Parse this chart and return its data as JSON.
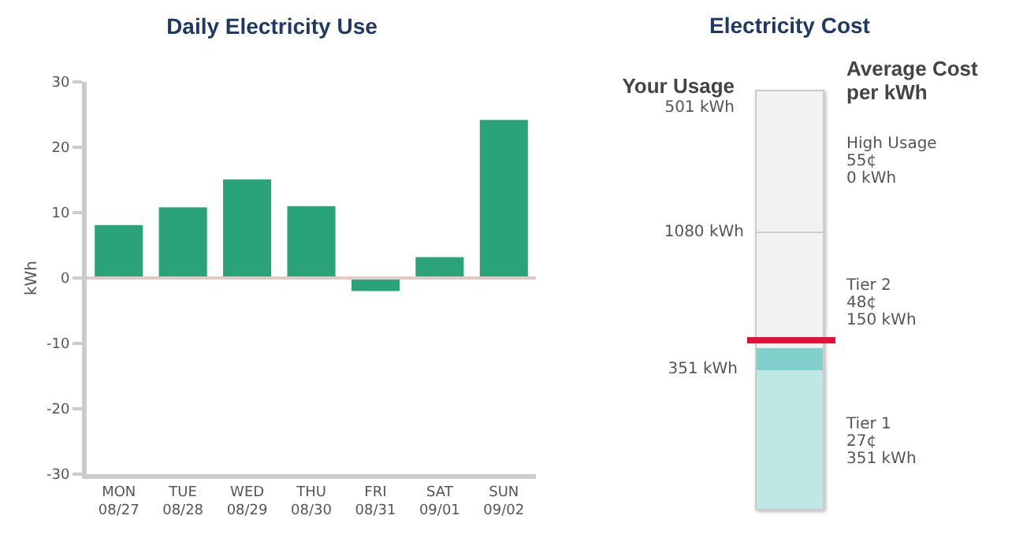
{
  "chart_data": [
    {
      "type": "bar",
      "title": "Daily Electricity Use",
      "ylabel": "kWh",
      "categories": [
        "MON\n08/27",
        "TUE\n08/28",
        "WED\n08/29",
        "THU\n08/30",
        "FRI\n08/31",
        "SAT\n09/01",
        "SUN\n09/02"
      ],
      "values": [
        8.1,
        10.8,
        15.1,
        11.0,
        -2.0,
        3.2,
        24.2
      ],
      "color": "#2aa37a",
      "ylim": [
        -30,
        30
      ],
      "yticks": [
        -30,
        -20,
        -10,
        0,
        10,
        20,
        30
      ],
      "grid": false,
      "ref_lines": [
        {
          "axis": "y",
          "value": 0,
          "color": "#e6c8c8"
        }
      ]
    },
    {
      "type": "other",
      "title": "Electricity Cost",
      "annotations": [
        "Your Usage",
        "501 kWh",
        "1080 kWh",
        "351 kWh",
        "Average Cost\nper kWh",
        "High Usage\n55¢\n0 kWh",
        "Tier 2\n48¢\n150 kWh",
        "Tier 1\n27¢\n351 kWh"
      ]
    }
  ]
}
